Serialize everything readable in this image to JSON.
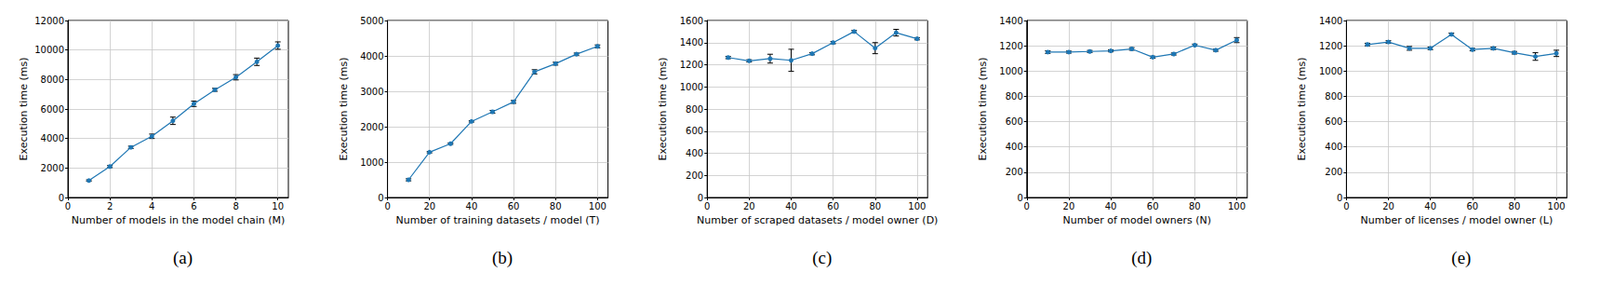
{
  "chart_data": [
    {
      "type": "line",
      "title": "(a)",
      "x_label": "Number of models in the model chain (M)",
      "y_label": "Execution time (ms)",
      "x": [
        1,
        2,
        3,
        4,
        5,
        6,
        7,
        8,
        9,
        10
      ],
      "values": [
        1150,
        2100,
        3400,
        4150,
        5200,
        6350,
        7300,
        8150,
        9200,
        10300
      ],
      "errors": [
        50,
        70,
        80,
        150,
        250,
        180,
        100,
        180,
        250,
        250
      ],
      "color": "#1f77b4",
      "marker": "circle",
      "grid": true,
      "xlim": [
        0,
        10.5
      ],
      "xticks": [
        0,
        2,
        4,
        6,
        8,
        10
      ],
      "ylim": [
        0,
        12000
      ],
      "yticks": [
        0,
        2000,
        4000,
        6000,
        8000,
        10000,
        12000
      ]
    },
    {
      "type": "line",
      "title": "(b)",
      "x_label": "Number of training datasets / model (T)",
      "y_label": "Execution time (ms)",
      "x": [
        10,
        20,
        30,
        40,
        50,
        60,
        70,
        80,
        90,
        100
      ],
      "values": [
        500,
        1280,
        1520,
        2150,
        2420,
        2700,
        3550,
        3780,
        4050,
        4270
      ],
      "errors": [
        30,
        20,
        20,
        20,
        40,
        40,
        60,
        40,
        30,
        40
      ],
      "color": "#1f77b4",
      "marker": "circle",
      "grid": true,
      "xlim": [
        0,
        105
      ],
      "xticks": [
        0,
        20,
        40,
        60,
        80,
        100
      ],
      "ylim": [
        0,
        5000
      ],
      "yticks": [
        0,
        1000,
        2000,
        3000,
        4000,
        5000
      ]
    },
    {
      "type": "line",
      "title": "(c)",
      "x_label": "Number of scraped datasets / model owner (D)",
      "y_label": "Execution time (ms)",
      "x": [
        10,
        20,
        30,
        40,
        50,
        60,
        70,
        80,
        90,
        100
      ],
      "values": [
        1265,
        1235,
        1255,
        1240,
        1300,
        1400,
        1500,
        1350,
        1490,
        1435
      ],
      "errors": [
        10,
        10,
        40,
        100,
        10,
        10,
        10,
        50,
        30,
        10
      ],
      "color": "#1f77b4",
      "marker": "circle",
      "grid": true,
      "xlim": [
        0,
        105
      ],
      "xticks": [
        0,
        20,
        40,
        60,
        80,
        100
      ],
      "ylim": [
        0,
        1600
      ],
      "yticks": [
        0,
        200,
        400,
        600,
        800,
        1000,
        1200,
        1400,
        1600
      ]
    },
    {
      "type": "line",
      "title": "(d)",
      "x_label": "Number of model owners (N)",
      "y_label": "Execution time (ms)",
      "x": [
        10,
        20,
        30,
        40,
        50,
        60,
        70,
        80,
        90,
        100
      ],
      "values": [
        1150,
        1150,
        1155,
        1160,
        1175,
        1110,
        1135,
        1205,
        1165,
        1245
      ],
      "errors": [
        10,
        8,
        8,
        8,
        10,
        8,
        8,
        8,
        8,
        20
      ],
      "color": "#1f77b4",
      "marker": "circle",
      "grid": true,
      "xlim": [
        0,
        105
      ],
      "xticks": [
        0,
        20,
        40,
        60,
        80,
        100
      ],
      "ylim": [
        0,
        1400
      ],
      "yticks": [
        0,
        200,
        400,
        600,
        800,
        1000,
        1200,
        1400
      ]
    },
    {
      "type": "line",
      "title": "(e)",
      "x_label": "Number of licenses / model owner (L)",
      "y_label": "Execution time (ms)",
      "x": [
        10,
        20,
        30,
        40,
        50,
        60,
        70,
        80,
        90,
        100
      ],
      "values": [
        1210,
        1230,
        1180,
        1180,
        1290,
        1170,
        1180,
        1145,
        1115,
        1140
      ],
      "errors": [
        10,
        10,
        15,
        10,
        10,
        10,
        10,
        10,
        30,
        25
      ],
      "color": "#1f77b4",
      "marker": "circle",
      "grid": true,
      "xlim": [
        0,
        105
      ],
      "xticks": [
        0,
        20,
        40,
        60,
        80,
        100
      ],
      "ylim": [
        0,
        1400
      ],
      "yticks": [
        0,
        200,
        400,
        600,
        800,
        1000,
        1200,
        1400
      ]
    }
  ]
}
